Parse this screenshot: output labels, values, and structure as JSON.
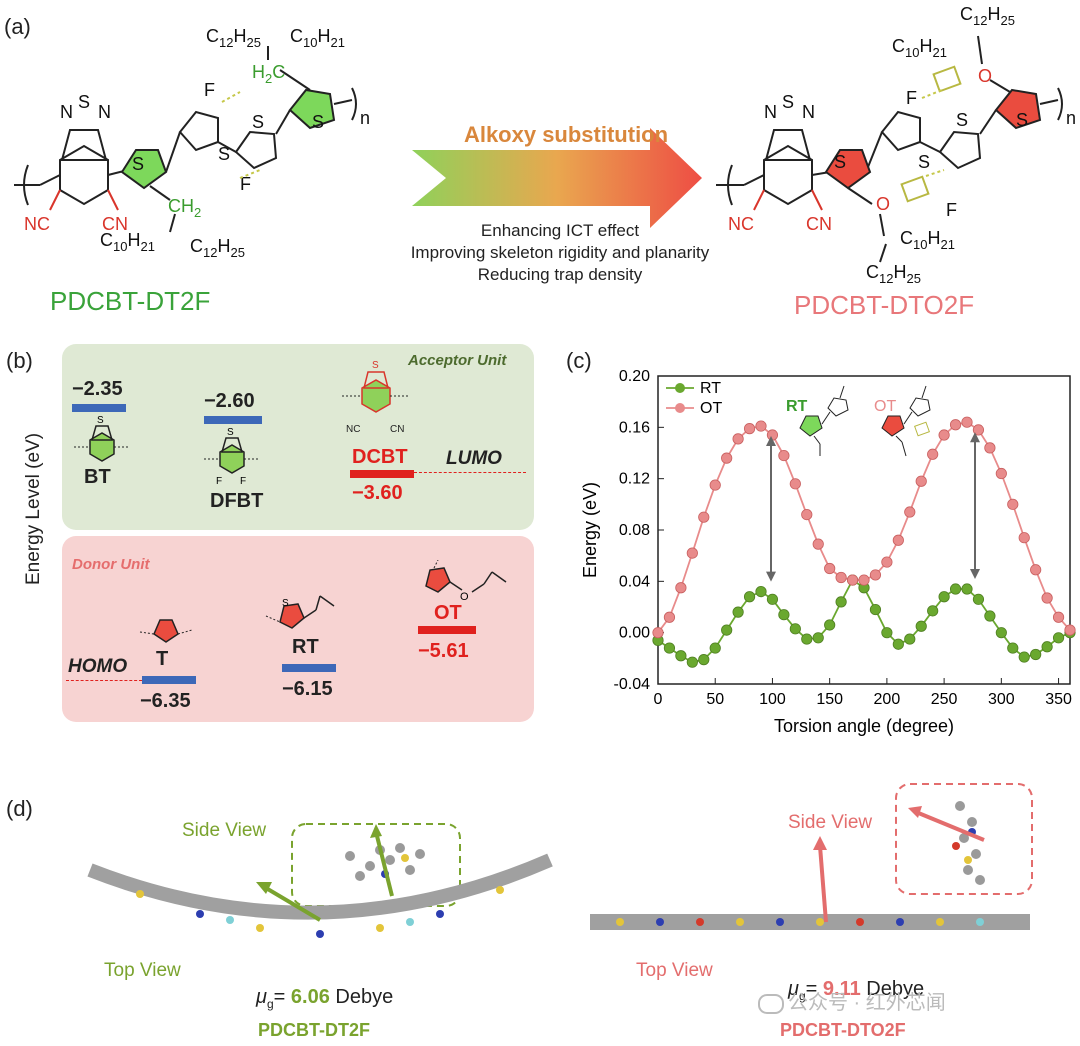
{
  "panel_a": {
    "label": "(a)",
    "left_name": "PDCBT-DT2F",
    "right_name": "PDCBT-DTO2F",
    "arrow_title": "Alkoxy substitution",
    "effects": [
      "Enhancing ICT effect",
      "Improving skeleton rigidity and planarity",
      "Reducing trap density"
    ],
    "repeat_n": "n"
  },
  "panel_b": {
    "label": "(b)",
    "ylabel": "Energy Level (eV)",
    "acceptor_title": "Acceptor Unit",
    "donor_title": "Donor Unit",
    "lumo_label": "LUMO",
    "homo_label": "HOMO",
    "acceptors": [
      {
        "name": "BT",
        "value": "−2.35"
      },
      {
        "name": "DFBT",
        "value": "−2.60"
      },
      {
        "name": "DCBT",
        "value": "−3.60"
      }
    ],
    "donors": [
      {
        "name": "T",
        "value": "−6.35"
      },
      {
        "name": "RT",
        "value": "−6.15"
      },
      {
        "name": "OT",
        "value": "−5.61"
      }
    ],
    "colors": {
      "blue": "#3d68b8",
      "red": "#e0211e",
      "acceptor_bg": "#dfe9d4",
      "donor_bg": "#f7d3d2"
    }
  },
  "panel_c": {
    "label": "(c)",
    "inset_rt": "RT",
    "inset_ot": "OT",
    "chart_data": {
      "type": "line",
      "xlabel": "Torsion angle (degree)",
      "ylabel": "Energy (eV)",
      "xlim": [
        0,
        360
      ],
      "ylim": [
        -0.04,
        0.2
      ],
      "xticks": [
        0,
        50,
        100,
        150,
        200,
        250,
        300,
        350
      ],
      "yticks": [
        -0.04,
        0.0,
        0.04,
        0.08,
        0.12,
        0.16,
        0.2
      ],
      "ytick_labels": [
        "-0.04",
        "0.00",
        "0.04",
        "0.08",
        "0.12",
        "0.16",
        "0.20"
      ],
      "legend_position": "top-left",
      "x": [
        0,
        10,
        20,
        30,
        40,
        50,
        60,
        70,
        80,
        90,
        100,
        110,
        120,
        130,
        140,
        150,
        160,
        170,
        180,
        190,
        200,
        210,
        220,
        230,
        240,
        250,
        260,
        270,
        280,
        290,
        300,
        310,
        320,
        330,
        340,
        350,
        360
      ],
      "series": [
        {
          "name": "RT",
          "color": "#6aa82f",
          "values": [
            -0.006,
            -0.012,
            -0.018,
            -0.023,
            -0.021,
            -0.012,
            0.002,
            0.016,
            0.028,
            0.032,
            0.026,
            0.014,
            0.003,
            -0.005,
            -0.004,
            0.006,
            0.024,
            0.041,
            0.035,
            0.018,
            0.0,
            -0.009,
            -0.005,
            0.005,
            0.017,
            0.028,
            0.034,
            0.034,
            0.026,
            0.013,
            0.0,
            -0.012,
            -0.019,
            -0.017,
            -0.011,
            -0.004,
            0.0
          ]
        },
        {
          "name": "OT",
          "color": "#e88b8b",
          "values": [
            0.0,
            0.012,
            0.035,
            0.062,
            0.09,
            0.115,
            0.136,
            0.151,
            0.159,
            0.161,
            0.154,
            0.138,
            0.116,
            0.092,
            0.069,
            0.05,
            0.043,
            0.041,
            0.041,
            0.045,
            0.055,
            0.072,
            0.094,
            0.118,
            0.139,
            0.154,
            0.162,
            0.164,
            0.158,
            0.144,
            0.124,
            0.1,
            0.074,
            0.049,
            0.027,
            0.012,
            0.002
          ]
        }
      ]
    }
  },
  "panel_d": {
    "label": "(d)",
    "side_view": "Side View",
    "top_view": "Top View",
    "left_mu": "6.06",
    "right_mu": "9.11",
    "debye": "Debye",
    "mu_symbol": "μ",
    "mu_sub": "g",
    "equals": "=",
    "left_name": "PDCBT-DT2F",
    "right_name": "PDCBT-DTO2F",
    "watermark": "公众号 · 红外芯闻"
  }
}
